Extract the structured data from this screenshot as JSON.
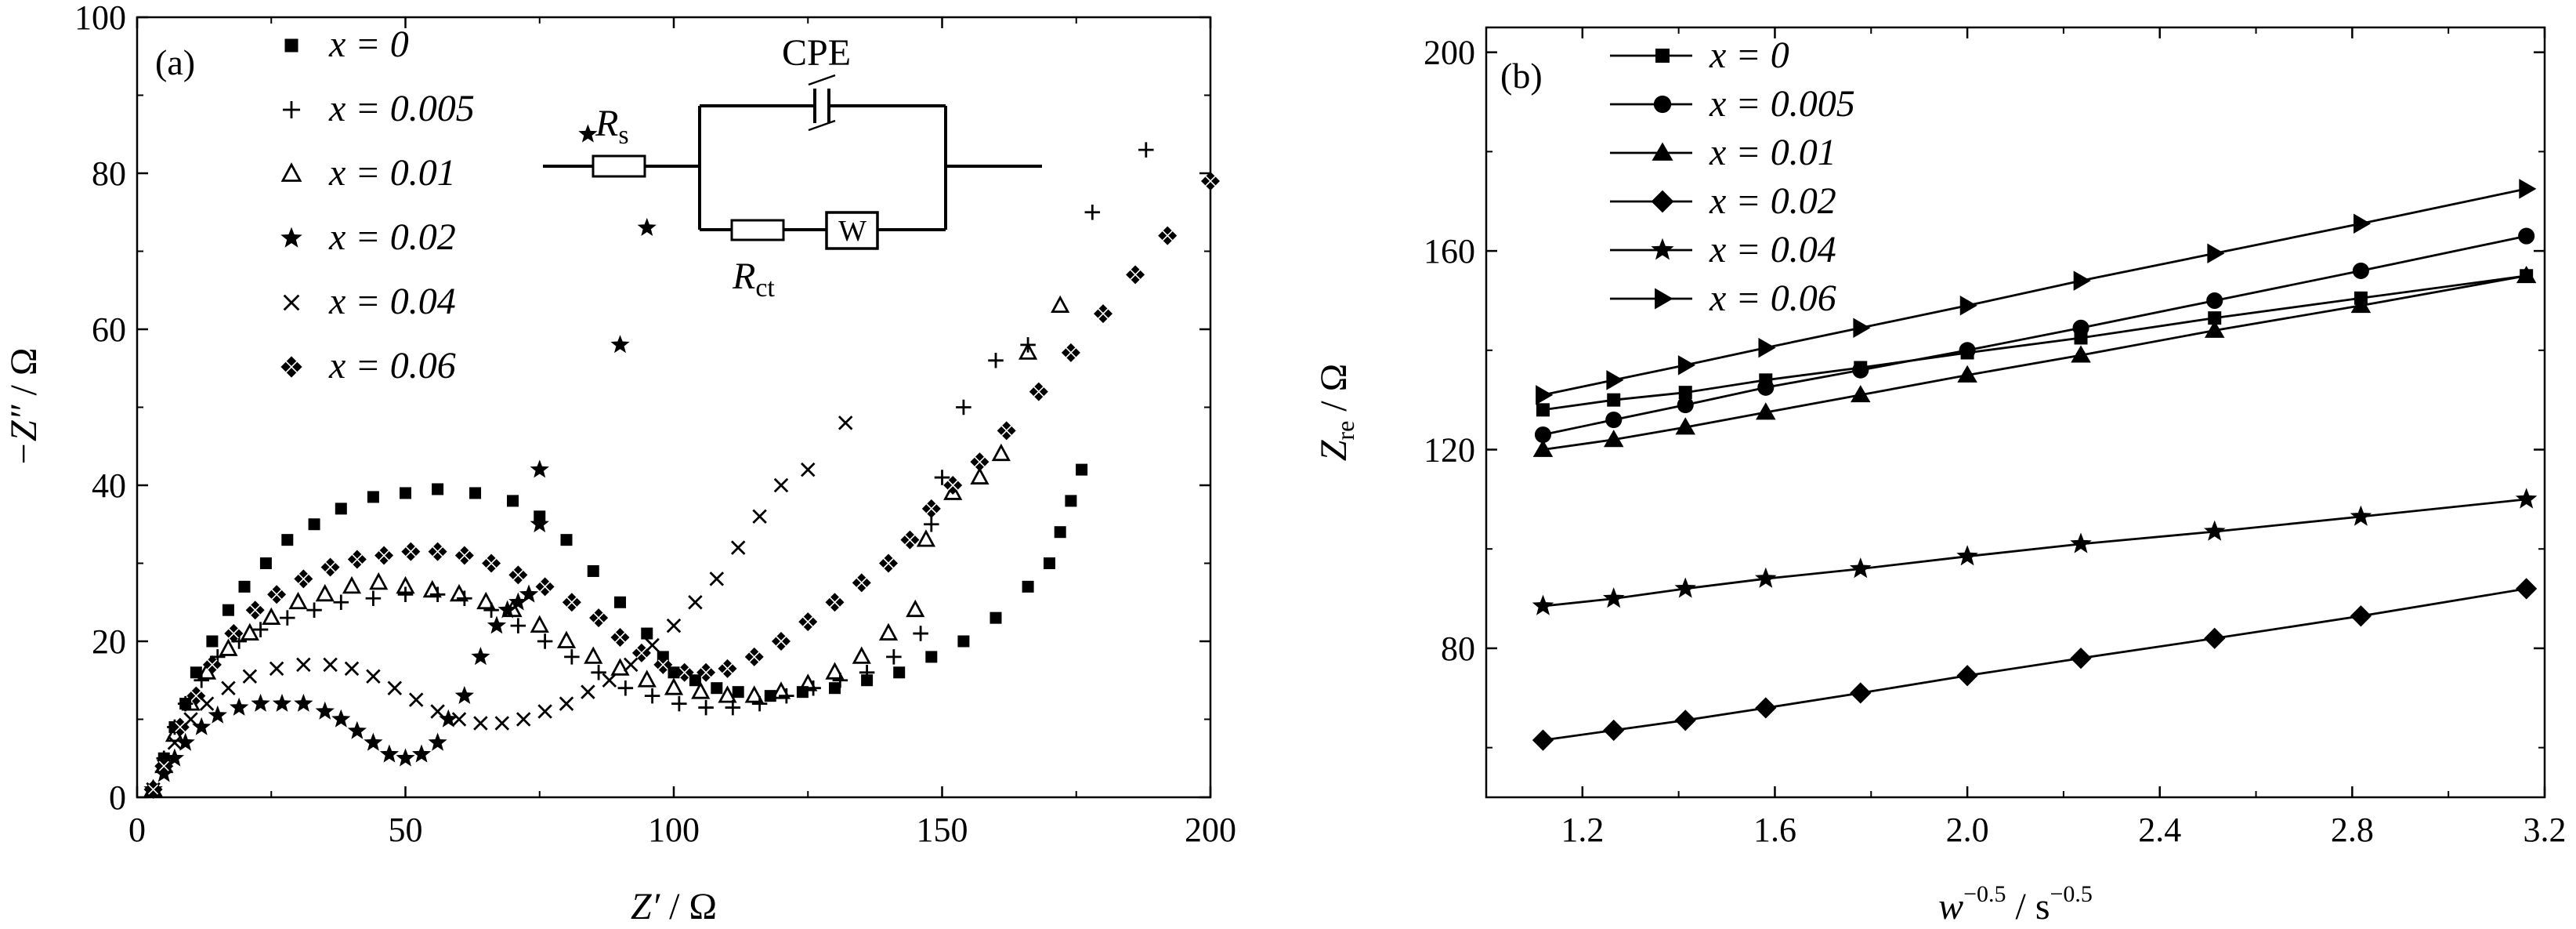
{
  "chart_data": [
    {
      "id": "a",
      "type": "scatter",
      "panel_label": "(a)",
      "xlabel_main": "Z′",
      "xlabel_unit": " / Ω",
      "ylabel_main": "−Z″",
      "ylabel_unit": " / Ω",
      "xlim": [
        0,
        200
      ],
      "ylim": [
        0,
        100
      ],
      "xticks": [
        0,
        50,
        100,
        150,
        200
      ],
      "yticks": [
        0,
        20,
        40,
        60,
        80,
        100
      ],
      "grid": false,
      "legend_position": "top-left",
      "series": [
        {
          "name": "x = 0",
          "marker": "square",
          "points": [
            [
              3,
              1
            ],
            [
              5,
              5
            ],
            [
              7,
              9
            ],
            [
              9,
              12
            ],
            [
              11,
              16
            ],
            [
              14,
              20
            ],
            [
              17,
              24
            ],
            [
              20,
              27
            ],
            [
              24,
              30
            ],
            [
              28,
              33
            ],
            [
              33,
              35
            ],
            [
              38,
              37
            ],
            [
              44,
              38.5
            ],
            [
              50,
              39
            ],
            [
              56,
              39.5
            ],
            [
              63,
              39
            ],
            [
              70,
              38
            ],
            [
              75,
              36
            ],
            [
              80,
              33
            ],
            [
              85,
              29
            ],
            [
              90,
              25
            ],
            [
              95,
              21
            ],
            [
              98,
              18
            ],
            [
              100,
              16
            ],
            [
              104,
              15
            ],
            [
              108,
              14
            ],
            [
              112,
              13.5
            ],
            [
              118,
              13
            ],
            [
              124,
              13.5
            ],
            [
              130,
              14
            ],
            [
              136,
              15
            ],
            [
              142,
              16
            ],
            [
              148,
              18
            ],
            [
              154,
              20
            ],
            [
              160,
              23
            ],
            [
              166,
              27
            ],
            [
              170,
              30
            ],
            [
              172,
              34
            ],
            [
              174,
              38
            ],
            [
              176,
              42
            ]
          ]
        },
        {
          "name": "x = 0.005",
          "marker": "plus",
          "points": [
            [
              3,
              1
            ],
            [
              5,
              5
            ],
            [
              7,
              9
            ],
            [
              9,
              12
            ],
            [
              12,
              15
            ],
            [
              15,
              18
            ],
            [
              19,
              20
            ],
            [
              23,
              21.5
            ],
            [
              28,
              23
            ],
            [
              33,
              24
            ],
            [
              38,
              25
            ],
            [
              44,
              25.5
            ],
            [
              50,
              26
            ],
            [
              56,
              26
            ],
            [
              61,
              25.5
            ],
            [
              66,
              24
            ],
            [
              71,
              22
            ],
            [
              76,
              20
            ],
            [
              81,
              18
            ],
            [
              86,
              16
            ],
            [
              91,
              14
            ],
            [
              96,
              13
            ],
            [
              101,
              12
            ],
            [
              106,
              11.5
            ],
            [
              111,
              11.5
            ],
            [
              116,
              12
            ],
            [
              121,
              13
            ],
            [
              126,
              14
            ],
            [
              131,
              15
            ],
            [
              136,
              16
            ],
            [
              141,
              18
            ],
            [
              146,
              21
            ],
            [
              148,
              35
            ],
            [
              150,
              41
            ],
            [
              154,
              50
            ],
            [
              160,
              56
            ],
            [
              166,
              58
            ],
            [
              178,
              75
            ],
            [
              188,
              83
            ]
          ]
        },
        {
          "name": "x = 0.01",
          "marker": "triangle",
          "points": [
            [
              3,
              1
            ],
            [
              5,
              4
            ],
            [
              7,
              8
            ],
            [
              10,
              12
            ],
            [
              13,
              16
            ],
            [
              17,
              19
            ],
            [
              21,
              21
            ],
            [
              25,
              23
            ],
            [
              30,
              25
            ],
            [
              35,
              26
            ],
            [
              40,
              27
            ],
            [
              45,
              27.5
            ],
            [
              50,
              27
            ],
            [
              55,
              26.5
            ],
            [
              60,
              26
            ],
            [
              65,
              25
            ],
            [
              70,
              24
            ],
            [
              75,
              22
            ],
            [
              80,
              20
            ],
            [
              85,
              18
            ],
            [
              90,
              16.5
            ],
            [
              95,
              15
            ],
            [
              100,
              14
            ],
            [
              105,
              13.5
            ],
            [
              110,
              13
            ],
            [
              115,
              13
            ],
            [
              120,
              13.5
            ],
            [
              125,
              14.5
            ],
            [
              130,
              16
            ],
            [
              135,
              18
            ],
            [
              140,
              21
            ],
            [
              145,
              24
            ],
            [
              147,
              33
            ],
            [
              152,
              39
            ],
            [
              157,
              41
            ],
            [
              161,
              44
            ],
            [
              166,
              57
            ],
            [
              172,
              63
            ]
          ]
        },
        {
          "name": "x = 0.02",
          "marker": "star",
          "points": [
            [
              3,
              1
            ],
            [
              5,
              3
            ],
            [
              7,
              5
            ],
            [
              9,
              7
            ],
            [
              12,
              9
            ],
            [
              15,
              10.5
            ],
            [
              19,
              11.5
            ],
            [
              23,
              12
            ],
            [
              27,
              12
            ],
            [
              31,
              12
            ],
            [
              35,
              11
            ],
            [
              38,
              10
            ],
            [
              41,
              8.5
            ],
            [
              44,
              7
            ],
            [
              47,
              5.5
            ],
            [
              50,
              5
            ],
            [
              53,
              5.5
            ],
            [
              56,
              7
            ],
            [
              58,
              10
            ],
            [
              61,
              13
            ],
            [
              64,
              18
            ],
            [
              67,
              22
            ],
            [
              69,
              24
            ],
            [
              71,
              25
            ],
            [
              73,
              26
            ],
            [
              75,
              35
            ],
            [
              75,
              42
            ],
            [
              95,
              73
            ],
            [
              90,
              58
            ],
            [
              84,
              85
            ]
          ]
        },
        {
          "name": "x = 0.04",
          "marker": "cross",
          "points": [
            [
              3,
              1
            ],
            [
              5,
              4
            ],
            [
              7,
              7
            ],
            [
              10,
              10
            ],
            [
              13,
              12
            ],
            [
              17,
              14
            ],
            [
              21,
              15.5
            ],
            [
              26,
              16.5
            ],
            [
              31,
              17
            ],
            [
              36,
              17
            ],
            [
              40,
              16.5
            ],
            [
              44,
              15.5
            ],
            [
              48,
              14
            ],
            [
              52,
              12.5
            ],
            [
              56,
              11
            ],
            [
              60,
              10
            ],
            [
              64,
              9.5
            ],
            [
              68,
              9.5
            ],
            [
              72,
              10
            ],
            [
              76,
              11
            ],
            [
              80,
              12
            ],
            [
              84,
              13.5
            ],
            [
              88,
              15
            ],
            [
              92,
              17
            ],
            [
              96,
              19.5
            ],
            [
              100,
              22
            ],
            [
              104,
              25
            ],
            [
              108,
              28
            ],
            [
              112,
              32
            ],
            [
              116,
              36
            ],
            [
              120,
              40
            ],
            [
              125,
              42
            ],
            [
              132,
              48
            ]
          ]
        },
        {
          "name": "x = 0.06",
          "marker": "diamond",
          "points": [
            [
              3,
              1
            ],
            [
              5,
              4
            ],
            [
              8,
              9
            ],
            [
              11,
              13
            ],
            [
              14,
              17
            ],
            [
              18,
              21
            ],
            [
              22,
              24
            ],
            [
              26,
              26
            ],
            [
              31,
              28
            ],
            [
              36,
              29.5
            ],
            [
              41,
              30.5
            ],
            [
              46,
              31
            ],
            [
              51,
              31.5
            ],
            [
              56,
              31.5
            ],
            [
              61,
              31
            ],
            [
              66,
              30
            ],
            [
              71,
              28.5
            ],
            [
              76,
              27
            ],
            [
              81,
              25
            ],
            [
              86,
              23
            ],
            [
              90,
              20.5
            ],
            [
              94,
              18.5
            ],
            [
              98,
              17
            ],
            [
              102,
              16
            ],
            [
              106,
              16
            ],
            [
              110,
              16.5
            ],
            [
              115,
              18
            ],
            [
              120,
              20
            ],
            [
              125,
              22.5
            ],
            [
              130,
              25
            ],
            [
              135,
              27.5
            ],
            [
              140,
              30
            ],
            [
              144,
              33
            ],
            [
              148,
              37
            ],
            [
              152,
              40
            ],
            [
              157,
              43
            ],
            [
              162,
              47
            ],
            [
              168,
              52
            ],
            [
              174,
              57
            ],
            [
              180,
              62
            ],
            [
              186,
              67
            ],
            [
              192,
              72
            ],
            [
              200,
              79
            ]
          ]
        }
      ]
    },
    {
      "id": "b",
      "type": "line",
      "panel_label": "(b)",
      "xlabel_main": "w",
      "xlabel_sup1": "−0.5",
      "xlabel_mid": " / s",
      "xlabel_sup2": "−0.5",
      "ylabel_main": "Z",
      "ylabel_sub": "re",
      "ylabel_unit": " / Ω",
      "xlim": [
        1.0,
        3.2
      ],
      "ylim": [
        50,
        205
      ],
      "xticks": [
        "1.2",
        "1.6",
        "2.0",
        "2.4",
        "2.8",
        "3.2"
      ],
      "yticks": [
        80,
        120,
        160,
        200
      ],
      "grid": false,
      "legend_position": "top-left",
      "x": [
        1.118,
        1.265,
        1.414,
        1.581,
        1.778,
        2.0,
        2.236,
        2.514,
        2.818,
        3.162
      ],
      "series": [
        {
          "name": "x = 0",
          "marker": "square",
          "values": [
            128,
            130,
            131.5,
            134,
            136.5,
            139.5,
            142.5,
            146.5,
            150.5,
            155
          ]
        },
        {
          "name": "x = 0.005",
          "marker": "circle",
          "values": [
            123,
            126,
            129,
            132.5,
            136,
            140,
            144.5,
            150,
            156,
            163
          ]
        },
        {
          "name": "x = 0.01",
          "marker": "triangle-up",
          "values": [
            120,
            122,
            124.5,
            127.5,
            131,
            135,
            139,
            144,
            149,
            155
          ]
        },
        {
          "name": "x = 0.02",
          "marker": "diamond",
          "values": [
            61.5,
            63.5,
            65.5,
            68,
            71,
            74.5,
            78,
            82,
            86.5,
            92
          ]
        },
        {
          "name": "x = 0.04",
          "marker": "star",
          "values": [
            88.5,
            90,
            92,
            94,
            96,
            98.5,
            101,
            103.5,
            106.5,
            110
          ]
        },
        {
          "name": "x = 0.06",
          "marker": "triangle-right",
          "values": [
            131,
            134,
            137,
            140.5,
            144.5,
            149,
            154,
            159.5,
            165.5,
            172.5
          ]
        }
      ]
    }
  ],
  "inset_circuit": {
    "label_cpe": "CPE",
    "label_rs_main": "R",
    "label_rs_sub": "s",
    "label_rct_main": "R",
    "label_rct_sub": "ct",
    "label_w": "W"
  }
}
